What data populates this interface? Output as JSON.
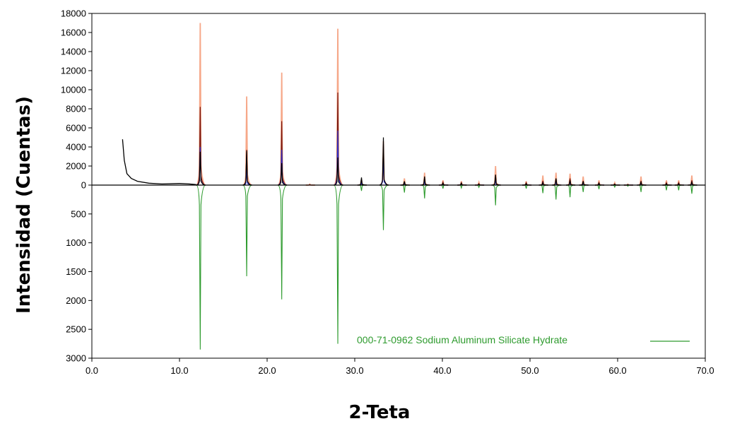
{
  "chart_data": {
    "type": "line",
    "xlabel": "2-Teta",
    "ylabel": "Intensidad (Cuentas)",
    "xlim": [
      0,
      70
    ],
    "x_ticks": [
      "0.0",
      "10.0",
      "20.0",
      "30.0",
      "40.0",
      "50.0",
      "60.0",
      "70.0"
    ],
    "upper_panel": {
      "ylim": [
        0,
        18000
      ],
      "y_ticks": [
        "0",
        "2000",
        "4000",
        "6000",
        "8000",
        "10000",
        "12000",
        "14000",
        "16000",
        "18000"
      ]
    },
    "lower_panel": {
      "ylim": [
        0,
        3000
      ],
      "inverted": true,
      "y_ticks": [
        "500",
        "1000",
        "1500",
        "2000",
        "2500",
        "3000"
      ]
    },
    "peaks_2theta": [
      12.4,
      17.7,
      21.7,
      24.9,
      28.1,
      30.8,
      33.3,
      35.7,
      38.0,
      40.1,
      42.2,
      44.2,
      46.1,
      49.6,
      51.5,
      53.0,
      54.6,
      56.1,
      57.9,
      59.7,
      61.2,
      62.7,
      65.6,
      67.0,
      68.5
    ],
    "series": [
      {
        "color": "#f6a788",
        "values": [
          17000,
          9300,
          11800,
          100,
          16400,
          600,
          4600,
          700,
          1300,
          500,
          400,
          300,
          2000,
          400,
          1000,
          1300,
          1200,
          900,
          500,
          250,
          100,
          900,
          500,
          500,
          1000
        ]
      },
      {
        "color": "#7a1a12",
        "values": [
          8200,
          3700,
          6700,
          60,
          9700,
          350,
          4300,
          400,
          700,
          300,
          250,
          150,
          900,
          250,
          450,
          700,
          700,
          450,
          250,
          120,
          60,
          450,
          250,
          250,
          500
        ]
      },
      {
        "color": "#3030c8",
        "values": [
          4000,
          1600,
          3700,
          0,
          5700,
          200,
          3000,
          200,
          350,
          150,
          120,
          80,
          500,
          120,
          250,
          350,
          350,
          220,
          120,
          60,
          30,
          220,
          120,
          120,
          250
        ]
      },
      {
        "color": "#000000",
        "values": [
          3500,
          3600,
          2300,
          0,
          2900,
          800,
          5000,
          400,
          900,
          200,
          200,
          100,
          1100,
          150,
          250,
          700,
          500,
          400,
          200,
          100,
          50,
          300,
          150,
          150,
          300
        ]
      },
      {
        "name": "000-71-0962 Sodium Aluminum Silicate Hydrate",
        "color": "#2e9b2e",
        "reference": true,
        "values": [
          2850,
          1580,
          1980,
          0,
          2750,
          100,
          780,
          130,
          230,
          60,
          50,
          40,
          350,
          60,
          140,
          250,
          210,
          120,
          70,
          35,
          20,
          120,
          90,
          90,
          150
        ]
      }
    ],
    "background_curve_points": [
      [
        3.5,
        4800
      ],
      [
        3.7,
        2600
      ],
      [
        4.0,
        1200
      ],
      [
        4.5,
        700
      ],
      [
        5.2,
        400
      ],
      [
        6.5,
        200
      ],
      [
        8.0,
        120
      ],
      [
        10.0,
        170
      ],
      [
        11.0,
        130
      ],
      [
        11.8,
        60
      ],
      [
        12.2,
        0
      ]
    ]
  }
}
